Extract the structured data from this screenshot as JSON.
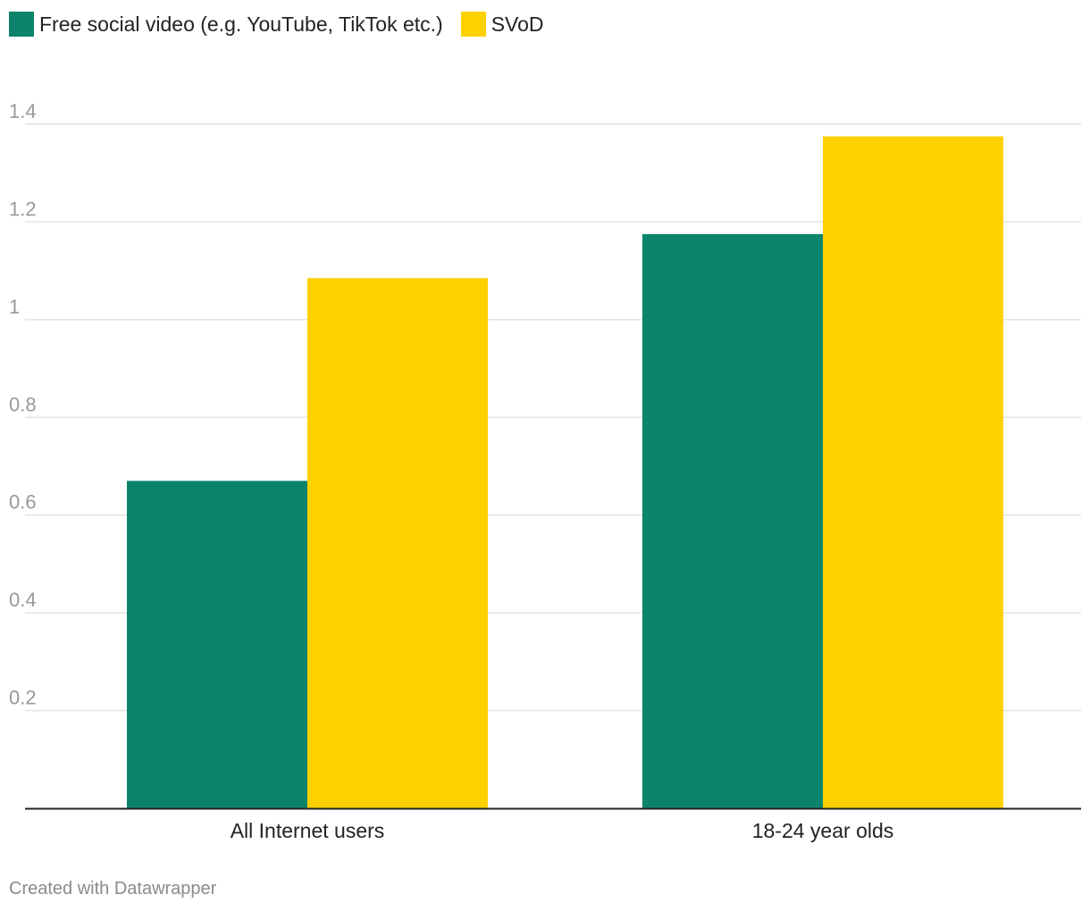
{
  "legend": {
    "series_0": "Free social video (e.g. YouTube, TikTok etc.)",
    "series_1": "SVoD"
  },
  "footer": {
    "credit": "Created with Datawrapper"
  },
  "chart_data": {
    "type": "bar",
    "categories": [
      "All Internet users",
      "18-24 year olds"
    ],
    "series": [
      {
        "name": "Free social video (e.g. YouTube, TikTok etc.)",
        "values": [
          0.67,
          1.175
        ],
        "color": "#0c846b"
      },
      {
        "name": "SVoD",
        "values": [
          1.085,
          1.375
        ],
        "color": "#fdd100"
      }
    ],
    "yticks": [
      "0.2",
      "0.4",
      "0.6",
      "0.8",
      "1",
      "1.2",
      "1.4"
    ],
    "ylim": [
      0,
      1.4
    ],
    "grid": true,
    "legend_position": "top-left",
    "gridline_color": "#e2e2e2",
    "axis_color": "#222222",
    "tick_label_color": "#999999"
  }
}
